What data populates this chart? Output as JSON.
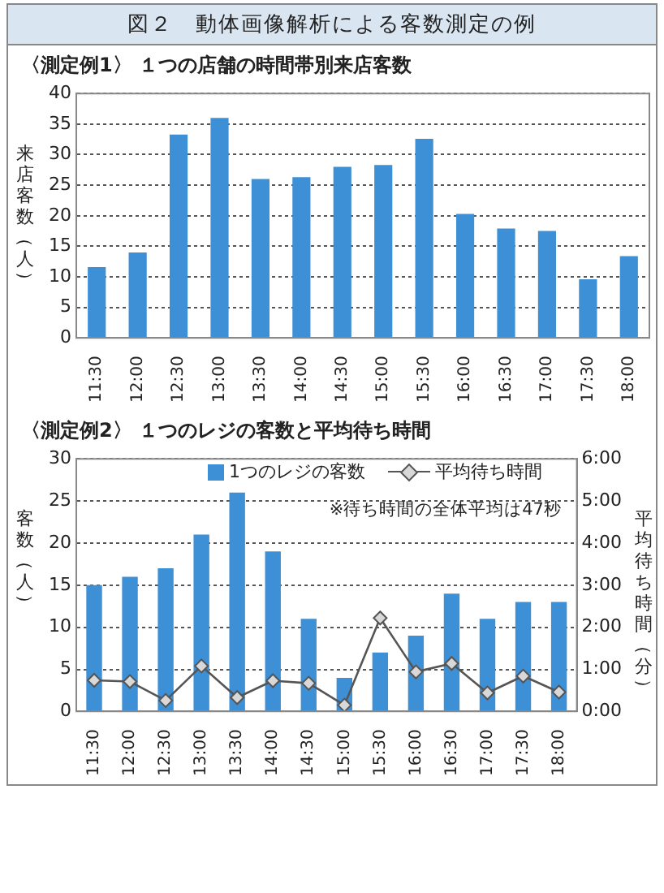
{
  "chart_data": [
    {
      "type": "bar",
      "title": "図２　動体画像解析による客数測定の例",
      "subtitle": "〈測定例1〉 １つの店舗の時間帯別来店客数",
      "ylabel": "来店客数（人）",
      "categories": [
        "11:30",
        "12:00",
        "12:30",
        "13:00",
        "13:30",
        "14:00",
        "14:30",
        "15:00",
        "15:30",
        "16:00",
        "16:30",
        "17:00",
        "17:30",
        "18:00"
      ],
      "series": [
        {
          "color": "#3d8fd6",
          "values": [
            11.6,
            14,
            33.3,
            36,
            26,
            26.3,
            28,
            28.3,
            32.6,
            20.3,
            17.9,
            17.5,
            9.6,
            13.4
          ]
        }
      ],
      "ylim": [
        0,
        40
      ],
      "yticks": [
        0,
        5,
        10,
        15,
        20,
        25,
        30,
        35,
        40
      ],
      "grid": "y",
      "legend": false
    },
    {
      "type": "bar",
      "title": "〈測定例2〉 １つのレジの客数と平均待ち時間",
      "ylabel": "客数（人）",
      "y2label": "平均待ち時間（分）",
      "categories": [
        "11:30",
        "12:00",
        "12:30",
        "13:00",
        "13:30",
        "14:00",
        "14:30",
        "15:00",
        "15:30",
        "16:00",
        "16:30",
        "17:00",
        "17:30",
        "18:00"
      ],
      "series": [
        {
          "name": "1つのレジの客数",
          "color": "#3d8fd6",
          "values": [
            15,
            16,
            17,
            21,
            26,
            19,
            11,
            4,
            7,
            9,
            14,
            11,
            13,
            13
          ]
        },
        {
          "name": "平均待ち時間",
          "type": "line",
          "axis": "y2",
          "color": "#555555",
          "marker": "diamond",
          "values": [
            0.74,
            0.71,
            0.26,
            1.08,
            0.33,
            0.73,
            0.67,
            0.15,
            2.22,
            0.94,
            1.14,
            0.44,
            0.84,
            0.46
          ]
        }
      ],
      "ylim": [
        0,
        30
      ],
      "yticks": [
        0,
        5,
        10,
        15,
        20,
        25,
        30
      ],
      "y2lim": [
        0,
        6
      ],
      "y2ticks": [
        {
          "value": 0,
          "label": "0:00"
        },
        {
          "value": 1,
          "label": "1:00"
        },
        {
          "value": 2,
          "label": "2:00"
        },
        {
          "value": 3,
          "label": "3:00"
        },
        {
          "value": 4,
          "label": "4:00"
        },
        {
          "value": 5,
          "label": "5:00"
        },
        {
          "value": 6,
          "label": "6:00"
        }
      ],
      "annotations": [
        "※待ち時間の全体平均は47秒"
      ],
      "grid": "y",
      "legend": "top right"
    }
  ]
}
